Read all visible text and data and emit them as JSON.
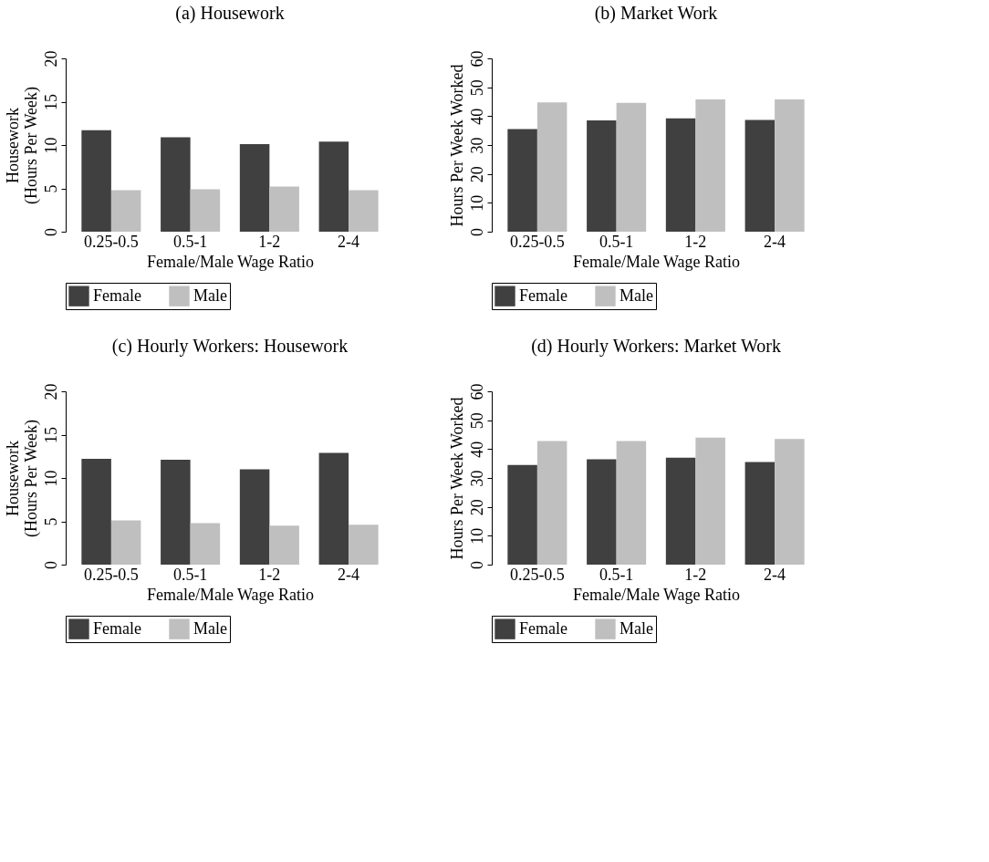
{
  "chart_data": [
    {
      "type": "bar",
      "title": "(a) Housework",
      "xlabel": "Female/Male Wage Ratio",
      "ylabel": "Housework\n(Hours Per Week)",
      "categories": [
        "0.25-0.5",
        "0.5-1",
        "1-2",
        "2-4"
      ],
      "ylim": [
        0,
        20
      ],
      "yticks": [
        0,
        5,
        10,
        15,
        20
      ],
      "grid": false,
      "legend": "bottom",
      "series": [
        {
          "name": "Female",
          "color": "#404040",
          "values": [
            11.7,
            10.9,
            10.1,
            10.4
          ]
        },
        {
          "name": "Male",
          "color": "#bfbfbf",
          "values": [
            4.8,
            4.9,
            5.2,
            4.8
          ]
        }
      ]
    },
    {
      "type": "bar",
      "title": "(b) Market Work",
      "xlabel": "Female/Male Wage Ratio",
      "ylabel": "Hours Per Week Worked",
      "categories": [
        "0.25-0.5",
        "0.5-1",
        "1-2",
        "2-4"
      ],
      "ylim": [
        0,
        60
      ],
      "yticks": [
        0,
        10,
        20,
        30,
        40,
        50,
        60
      ],
      "grid": false,
      "legend": "bottom",
      "series": [
        {
          "name": "Female",
          "color": "#404040",
          "values": [
            35.5,
            38.5,
            39.2,
            38.7
          ]
        },
        {
          "name": "Male",
          "color": "#bfbfbf",
          "values": [
            44.8,
            44.6,
            45.8,
            45.8
          ]
        }
      ]
    },
    {
      "type": "bar",
      "title": "(c) Hourly Workers: Housework",
      "xlabel": "Female/Male Wage Ratio",
      "ylabel": "Housework\n(Hours Per Week)",
      "categories": [
        "0.25-0.5",
        "0.5-1",
        "1-2",
        "2-4"
      ],
      "ylim": [
        0,
        20
      ],
      "yticks": [
        0,
        5,
        10,
        15,
        20
      ],
      "grid": false,
      "legend": "bottom",
      "series": [
        {
          "name": "Female",
          "color": "#404040",
          "values": [
            12.2,
            12.1,
            11.0,
            12.9
          ]
        },
        {
          "name": "Male",
          "color": "#bfbfbf",
          "values": [
            5.1,
            4.8,
            4.5,
            4.6
          ]
        }
      ]
    },
    {
      "type": "bar",
      "title": "(d) Hourly Workers: Market Work",
      "xlabel": "Female/Male Wage Ratio",
      "ylabel": "Hours Per Week Worked",
      "categories": [
        "0.25-0.5",
        "0.5-1",
        "1-2",
        "2-4"
      ],
      "ylim": [
        0,
        60
      ],
      "yticks": [
        0,
        10,
        20,
        30,
        40,
        50,
        60
      ],
      "grid": false,
      "legend": "bottom",
      "series": [
        {
          "name": "Female",
          "color": "#404040",
          "values": [
            34.5,
            36.5,
            37.0,
            35.5
          ]
        },
        {
          "name": "Male",
          "color": "#bfbfbf",
          "values": [
            42.8,
            42.8,
            44.0,
            43.5
          ]
        }
      ]
    }
  ]
}
